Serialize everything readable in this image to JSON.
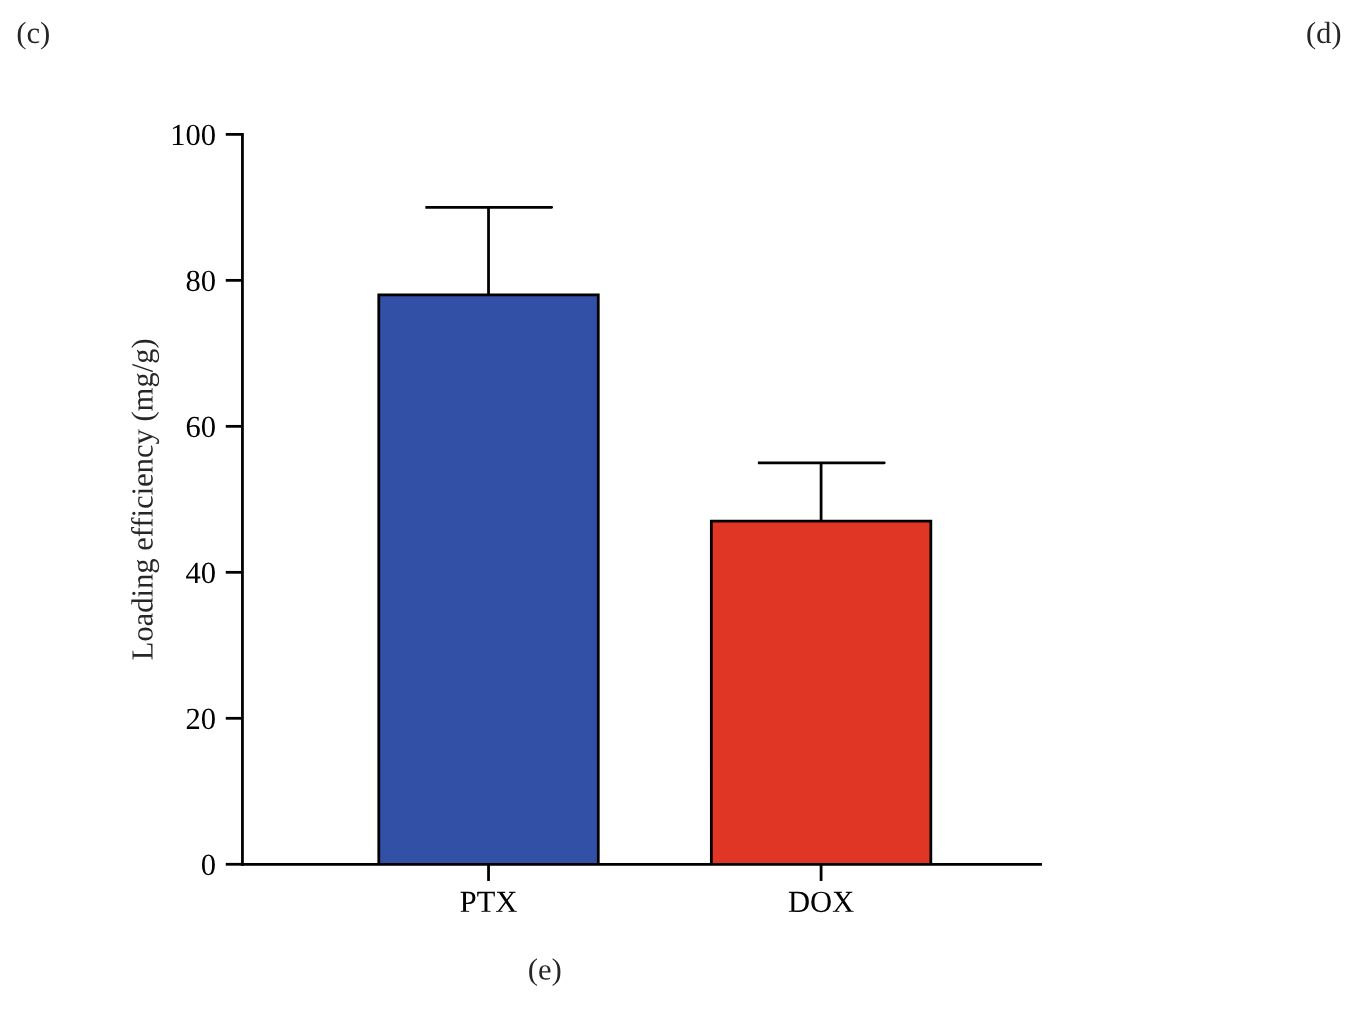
{
  "chart_data": {
    "type": "bar",
    "ylabel": "Loading efficiency (mg/g)",
    "categories": [
      "PTX",
      "DOX"
    ],
    "values": [
      78,
      47
    ],
    "colors": [
      "#3150a6",
      "#e03626"
    ],
    "errors": [
      [
        78,
        90
      ],
      [
        47,
        55
      ]
    ],
    "ylim": [
      0,
      100
    ],
    "yticks": [
      0,
      20,
      40,
      60,
      80,
      100
    ],
    "grid": false,
    "legend": false,
    "annotations": [
      "(c)",
      "(d)",
      "(e)"
    ]
  }
}
